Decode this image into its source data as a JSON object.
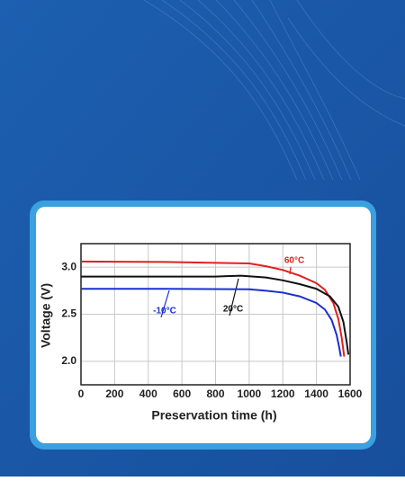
{
  "chart_data": {
    "type": "line",
    "xlabel": "Preservation time (h)",
    "ylabel": "Voltage (V)",
    "xlim": [
      0,
      1600
    ],
    "xticks": [
      0,
      200,
      400,
      600,
      800,
      1000,
      1200,
      1400,
      1600
    ],
    "ylim": [
      1.75,
      3.25
    ],
    "yticks": [
      {
        "value": 2,
        "label": "2.0"
      },
      2.5,
      {
        "value": 3,
        "label": "3.0"
      }
    ],
    "grid": true,
    "series": [
      {
        "name": "60°C",
        "color": "#e02020",
        "x": [
          0,
          500,
          1000,
          1100,
          1200,
          1300,
          1400,
          1450,
          1500,
          1530,
          1550,
          1565
        ],
        "values": [
          3.06,
          3.055,
          3.04,
          3.01,
          2.97,
          2.91,
          2.83,
          2.76,
          2.62,
          2.45,
          2.25,
          2.05
        ]
      },
      {
        "name": "20°C",
        "color": "#111111",
        "x": [
          0,
          500,
          800,
          950,
          1100,
          1200,
          1300,
          1400,
          1480,
          1530,
          1560,
          1580,
          1590
        ],
        "values": [
          2.9,
          2.9,
          2.9,
          2.91,
          2.89,
          2.86,
          2.82,
          2.77,
          2.69,
          2.58,
          2.42,
          2.2,
          2.07
        ]
      },
      {
        "name": "-10°C",
        "color": "#1a2fd0",
        "x": [
          0,
          500,
          1000,
          1100,
          1200,
          1300,
          1400,
          1450,
          1490,
          1520,
          1535,
          1545
        ],
        "values": [
          2.77,
          2.77,
          2.765,
          2.75,
          2.73,
          2.69,
          2.62,
          2.55,
          2.44,
          2.28,
          2.15,
          2.05
        ]
      }
    ]
  }
}
